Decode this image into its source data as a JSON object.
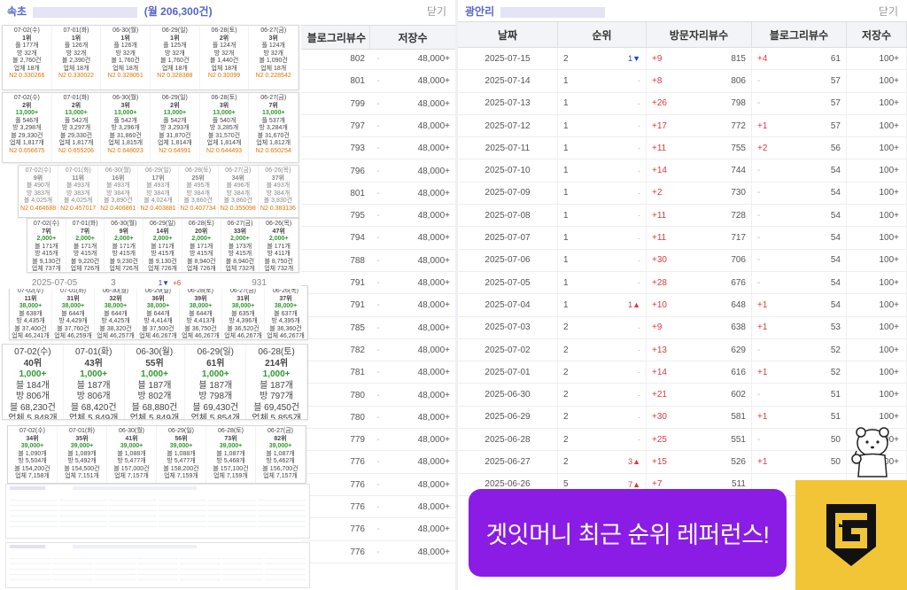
{
  "left_panel": {
    "title_prefix": "속초",
    "title_suffix": "(월 206,300건)",
    "close_label": "닫기",
    "header_blog": "블로그리뷰수",
    "header_save": "저장수",
    "rows": [
      {
        "v": "802",
        "s": "48,000+"
      },
      {
        "v": "801",
        "s": "48,000+"
      },
      {
        "v": "799",
        "s": "48,000+"
      },
      {
        "v": "797",
        "s": "48,000+"
      },
      {
        "v": "793",
        "s": "48,000+"
      },
      {
        "v": "796",
        "s": "48,000+"
      },
      {
        "v": "801",
        "s": "48,000+"
      },
      {
        "v": "795",
        "s": "48,000+"
      },
      {
        "v": "794",
        "s": "48,000+"
      },
      {
        "v": "788",
        "s": "48,000+"
      },
      {
        "v": "791",
        "s": "48,000+"
      },
      {
        "v": "791",
        "s": "48,000+"
      },
      {
        "v": "785",
        "s": "48,000+"
      },
      {
        "v": "782",
        "s": "48,000+"
      },
      {
        "v": "781",
        "s": "48,000+"
      },
      {
        "v": "780",
        "s": "48,000+"
      },
      {
        "v": "780",
        "s": "48,000+"
      },
      {
        "v": "779",
        "s": "48,000+"
      },
      {
        "v": "776",
        "s": "48,000+"
      },
      {
        "v": "776",
        "s": "48,000+"
      },
      {
        "v": "776",
        "s": "48,000+"
      },
      {
        "v": "776",
        "s": "48,000+"
      },
      {
        "v": "776",
        "s": "48,000+"
      }
    ],
    "peek_row": {
      "date": "2025-07-05",
      "rank": "3",
      "count": "931"
    }
  },
  "cards": [
    {
      "cells": [
        {
          "d": "07-02(수)",
          "r": "1위",
          "a": "플 177개",
          "b": "방 32개",
          "c": "블 2,760건",
          "e": "업체 18개",
          "n": "N2 0.330266"
        },
        {
          "d": "07-01(화)",
          "r": "1위",
          "a": "플 126개",
          "b": "방 32개",
          "c": "블 2,390건",
          "e": "업체 18개",
          "n": "N2 0.330022"
        },
        {
          "d": "06-30(월)",
          "r": "1위",
          "a": "플 126개",
          "b": "방 32개",
          "c": "블 1,760건",
          "e": "업체 18개",
          "n": "N2 0.328051"
        },
        {
          "d": "06-29(일)",
          "r": "1위",
          "a": "플 125개",
          "b": "방 32개",
          "c": "블 1,760건",
          "e": "업체 18개",
          "n": "N2 0.328388"
        },
        {
          "d": "06-28(토)",
          "r": "2위",
          "a": "플 124개",
          "b": "방 32개",
          "c": "블 1,440건",
          "e": "업체 18개",
          "n": "N2 0.30099"
        },
        {
          "d": "06-27(금)",
          "r": "3위",
          "a": "플 124개",
          "b": "방 32개",
          "c": "블 1,090건",
          "e": "업체 18개",
          "n": "N2 0.228542"
        }
      ]
    },
    {
      "cells": [
        {
          "d": "07-02(수)",
          "r": "2위",
          "g": "13,000+",
          "a": "플 546개",
          "b": "방 3,298개",
          "c": "블 29,330건",
          "e": "업체 1,817개",
          "n": "N2 0.656675"
        },
        {
          "d": "07-01(화)",
          "r": "2위",
          "g": "13,000+",
          "a": "플 542개",
          "b": "방 3,297개",
          "c": "블 29,330건",
          "e": "업체 1,817개",
          "n": "N2 0.655206"
        },
        {
          "d": "06-30(월)",
          "r": "3위",
          "g": "13,000+",
          "a": "플 542개",
          "b": "방 3,296개",
          "c": "블 31,860건",
          "e": "업체 1,815개",
          "n": "N2 0.648023"
        },
        {
          "d": "06-29(일)",
          "r": "2위",
          "g": "13,000+",
          "a": "플 542개",
          "b": "방 3,293개",
          "c": "블 31,870건",
          "e": "업체 1,814개",
          "n": "N2 0.64991"
        },
        {
          "d": "06-28(토)",
          "r": "3위",
          "g": "13,000+",
          "a": "플 540개",
          "b": "방 3,285개",
          "c": "블 31,570건",
          "e": "업체 1,814개",
          "n": "N2 0.644493"
        },
        {
          "d": "06-27(금)",
          "r": "7위",
          "g": "13,000+",
          "a": "플 537개",
          "b": "방 3,284개",
          "c": "블 31,670건",
          "e": "업체 1,812개",
          "n": "N2 0.650254"
        }
      ]
    },
    {
      "cells": [
        {
          "d": "07-02(수)",
          "r": "9위",
          "a": "블 490개",
          "b": "방 383개",
          "c": "블 4,025개",
          "n": "N2 0.464688"
        },
        {
          "d": "07-01(화)",
          "r": "11위",
          "a": "블 493개",
          "b": "방 383개",
          "c": "블 4,025개",
          "n": "N2 0.457017"
        },
        {
          "d": "06-30(월)",
          "r": "16위",
          "a": "블 493개",
          "b": "방 384개",
          "c": "블 3,890건",
          "n": "N2 0.406861"
        },
        {
          "d": "06-29(일)",
          "r": "17위",
          "a": "블 493개",
          "b": "방 384개",
          "c": "블 4,024개",
          "n": "N2 0.403881"
        },
        {
          "d": "06-28(토)",
          "r": "25위",
          "a": "블 495개",
          "b": "방 384개",
          "c": "블 3,860건",
          "n": "N2 0.407734"
        },
        {
          "d": "06-27(금)",
          "r": "34위",
          "a": "블 496개",
          "b": "방 384개",
          "c": "블 3,860건",
          "n": "N2 0.355098"
        },
        {
          "d": "06-26(목)",
          "r": "37위",
          "a": "블 493개",
          "b": "방 384개",
          "c": "블 3,830건",
          "n": "N2 0.383136"
        }
      ]
    },
    {
      "cells": [
        {
          "d": "07-02(수)",
          "r": "7위",
          "g": "2,000+",
          "a": "블 171개",
          "b": "방 415개",
          "c": "블 9,130건",
          "e": "업체 737개"
        },
        {
          "d": "07-01(화)",
          "r": "7위",
          "g": "2,000+",
          "a": "블 171개",
          "b": "방 415개",
          "c": "블 9,220건",
          "e": "업체 726개"
        },
        {
          "d": "06-30(월)",
          "r": "9위",
          "g": "2,000+",
          "a": "블 171개",
          "b": "방 415개",
          "c": "블 9,230건",
          "e": "업체 726개"
        },
        {
          "d": "06-29(일)",
          "r": "14위",
          "g": "2,000+",
          "a": "블 171개",
          "b": "방 415개",
          "c": "블 9,130건",
          "e": "업체 726개"
        },
        {
          "d": "06-28(토)",
          "r": "20위",
          "g": "2,000+",
          "a": "블 171개",
          "b": "방 415개",
          "c": "블 8,940건",
          "e": "업체 726개"
        },
        {
          "d": "06-27(금)",
          "r": "33위",
          "g": "2,000+",
          "a": "블 173개",
          "b": "방 415개",
          "c": "블 8,940건",
          "e": "업체 732개"
        },
        {
          "d": "06-26(목)",
          "r": "47위",
          "g": "2,000+",
          "a": "블 171개",
          "b": "방 411개",
          "c": "블 8,750건",
          "e": "업체 732개"
        }
      ]
    },
    {
      "cells": [
        {
          "d": "07-02(수)",
          "r": "11위",
          "g": "38,000+",
          "a": "블 638개",
          "b": "방 4,435개",
          "c": "블 37,400건",
          "e": "업체 46,241개"
        },
        {
          "d": "07-01(화)",
          "r": "31위",
          "g": "38,000+",
          "a": "블 644개",
          "b": "방 4,429개",
          "c": "블 37,760건",
          "e": "업체 46,259개"
        },
        {
          "d": "06-30(월)",
          "r": "32위",
          "g": "38,000+",
          "a": "블 644개",
          "b": "방 4,425개",
          "c": "블 38,320건",
          "e": "업체 46,257개"
        },
        {
          "d": "06-29(일)",
          "r": "36위",
          "g": "38,000+",
          "a": "블 644개",
          "b": "방 4,414개",
          "c": "블 37,500건",
          "e": "업체 46,267개"
        },
        {
          "d": "06-28(토)",
          "r": "39위",
          "g": "38,000+",
          "a": "블 644개",
          "b": "방 4,413개",
          "c": "블 36,750건",
          "e": "업체 46,267개"
        },
        {
          "d": "06-27(금)",
          "r": "31위",
          "g": "38,000+",
          "a": "블 635개",
          "b": "방 4,396개",
          "c": "블 36,520건",
          "e": "업체 46,267개"
        },
        {
          "d": "06-26(목)",
          "r": "37위",
          "g": "38,000+",
          "a": "블 637개",
          "b": "방 4,395개",
          "c": "블 36,360건",
          "e": "업체 46,267개"
        }
      ]
    },
    {
      "cells": [
        {
          "d": "07-02(수)",
          "r": "40위",
          "g": "1,000+",
          "a": "블 184개",
          "b": "방 806개",
          "c": "블 68,230건",
          "e": "업체 5,848개"
        },
        {
          "d": "07-01(화)",
          "r": "43위",
          "g": "1,000+",
          "a": "블 187개",
          "b": "방 806개",
          "c": "블 68,420건",
          "e": "업체 5,849개"
        },
        {
          "d": "06-30(월)",
          "r": "55위",
          "g": "1,000+",
          "a": "블 187개",
          "b": "방 802개",
          "c": "블 68,880건",
          "e": "업체 5,849개"
        },
        {
          "d": "06-29(일)",
          "r": "61위",
          "g": "1,000+",
          "a": "블 187개",
          "b": "방 798개",
          "c": "블 69,430건",
          "e": "업체 5,854개"
        },
        {
          "d": "06-28(토)",
          "r": "214위",
          "g": "1,000+",
          "a": "블 187개",
          "b": "방 797개",
          "c": "블 69,450건",
          "e": "업체 5,855개"
        }
      ]
    },
    {
      "cells": [
        {
          "d": "07-02(수)",
          "r": "34위",
          "g": "39,000+",
          "a": "블 1,090개",
          "b": "방 5,504개",
          "c": "블 154,200건",
          "e": "업체 7,158개"
        },
        {
          "d": "07-01(화)",
          "r": "35위",
          "g": "39,000+",
          "a": "블 1,089개",
          "b": "방 5,492개",
          "c": "블 154,500건",
          "e": "업체 7,151개"
        },
        {
          "d": "06-30(월)",
          "r": "41위",
          "g": "39,000+",
          "a": "블 1,088개",
          "b": "방 5,477개",
          "c": "블 157,000건",
          "e": "업체 7,157개"
        },
        {
          "d": "06-29(일)",
          "r": "56위",
          "g": "39,000+",
          "a": "블 1,088개",
          "b": "방 5,477개",
          "c": "블 158,200건",
          "e": "업체 7,159개"
        },
        {
          "d": "06-28(토)",
          "r": "73위",
          "g": "39,000+",
          "a": "블 1,087개",
          "b": "방 5,468개",
          "c": "블 157,100건",
          "e": "업체 7,159개"
        },
        {
          "d": "06-27(금)",
          "r": "82위",
          "g": "39,000+",
          "a": "블 1,087개",
          "b": "방 5,462개",
          "c": "블 156,700건",
          "e": "업체 7,157개"
        }
      ]
    }
  ],
  "right_panel": {
    "title_prefix": "광안리",
    "close_label": "닫기",
    "headers": {
      "date": "날짜",
      "rank": "순위",
      "visit": "방문자리뷰수",
      "blog": "블로그리뷰수",
      "save": "저장수"
    },
    "rows": [
      {
        "date": "2025-07-15",
        "rank": "2",
        "rchg": "1▼",
        "rdir": "down",
        "vchg": "+9",
        "visit": "815",
        "bchg": "+4",
        "blog": "61",
        "save": "100+"
      },
      {
        "date": "2025-07-14",
        "rank": "1",
        "rchg": "-",
        "rdir": "",
        "vchg": "+8",
        "visit": "806",
        "bchg": "-",
        "blog": "57",
        "save": "100+"
      },
      {
        "date": "2025-07-13",
        "rank": "1",
        "rchg": "-",
        "rdir": "",
        "vchg": "+26",
        "visit": "798",
        "bchg": "-",
        "blog": "57",
        "save": "100+"
      },
      {
        "date": "2025-07-12",
        "rank": "1",
        "rchg": "-",
        "rdir": "",
        "vchg": "+17",
        "visit": "772",
        "bchg": "+1",
        "blog": "57",
        "save": "100+"
      },
      {
        "date": "2025-07-11",
        "rank": "1",
        "rchg": "-",
        "rdir": "",
        "vchg": "+11",
        "visit": "755",
        "bchg": "+2",
        "blog": "56",
        "save": "100+"
      },
      {
        "date": "2025-07-10",
        "rank": "1",
        "rchg": "-",
        "rdir": "",
        "vchg": "+14",
        "visit": "744",
        "bchg": "-",
        "blog": "54",
        "save": "100+"
      },
      {
        "date": "2025-07-09",
        "rank": "1",
        "rchg": "-",
        "rdir": "",
        "vchg": "+2",
        "visit": "730",
        "bchg": "-",
        "blog": "54",
        "save": "100+"
      },
      {
        "date": "2025-07-08",
        "rank": "1",
        "rchg": "-",
        "rdir": "",
        "vchg": "+11",
        "visit": "728",
        "bchg": "-",
        "blog": "54",
        "save": "100+"
      },
      {
        "date": "2025-07-07",
        "rank": "1",
        "rchg": "-",
        "rdir": "",
        "vchg": "+11",
        "visit": "717",
        "bchg": "-",
        "blog": "54",
        "save": "100+"
      },
      {
        "date": "2025-07-06",
        "rank": "1",
        "rchg": "-",
        "rdir": "",
        "vchg": "+30",
        "visit": "706",
        "bchg": "-",
        "blog": "54",
        "save": "100+"
      },
      {
        "date": "2025-07-05",
        "rank": "1",
        "rchg": "-",
        "rdir": "",
        "vchg": "+28",
        "visit": "676",
        "bchg": "-",
        "blog": "54",
        "save": "100+"
      },
      {
        "date": "2025-07-04",
        "rank": "1",
        "rchg": "1▲",
        "rdir": "up",
        "vchg": "+10",
        "visit": "648",
        "bchg": "+1",
        "blog": "54",
        "save": "100+"
      },
      {
        "date": "2025-07-03",
        "rank": "2",
        "rchg": "-",
        "rdir": "",
        "vchg": "+9",
        "visit": "638",
        "bchg": "+1",
        "blog": "53",
        "save": "100+"
      },
      {
        "date": "2025-07-02",
        "rank": "2",
        "rchg": "-",
        "rdir": "",
        "vchg": "+13",
        "visit": "629",
        "bchg": "-",
        "blog": "52",
        "save": "100+"
      },
      {
        "date": "2025-07-01",
        "rank": "2",
        "rchg": "-",
        "rdir": "",
        "vchg": "+14",
        "visit": "616",
        "bchg": "+1",
        "blog": "52",
        "save": "100+"
      },
      {
        "date": "2025-06-30",
        "rank": "2",
        "rchg": "-",
        "rdir": "",
        "vchg": "+21",
        "visit": "602",
        "bchg": "-",
        "blog": "51",
        "save": "100+"
      },
      {
        "date": "2025-06-29",
        "rank": "2",
        "rchg": "-",
        "rdir": "",
        "vchg": "+30",
        "visit": "581",
        "bchg": "+1",
        "blog": "51",
        "save": "100+"
      },
      {
        "date": "2025-06-28",
        "rank": "2",
        "rchg": "-",
        "rdir": "",
        "vchg": "+25",
        "visit": "551",
        "bchg": "-",
        "blog": "50",
        "save": "100+"
      },
      {
        "date": "2025-06-27",
        "rank": "2",
        "rchg": "3▲",
        "rdir": "up",
        "vchg": "+15",
        "visit": "526",
        "bchg": "+1",
        "blog": "50",
        "save": "100+"
      },
      {
        "date": "2025-06-26",
        "rank": "5",
        "rchg": "7▲",
        "rdir": "up",
        "vchg": "+7",
        "visit": "511",
        "bchg": "",
        "blog": "",
        "save": ""
      }
    ]
  },
  "banner": {
    "text": "겟잇머니 최근 순위 레퍼런스!"
  }
}
